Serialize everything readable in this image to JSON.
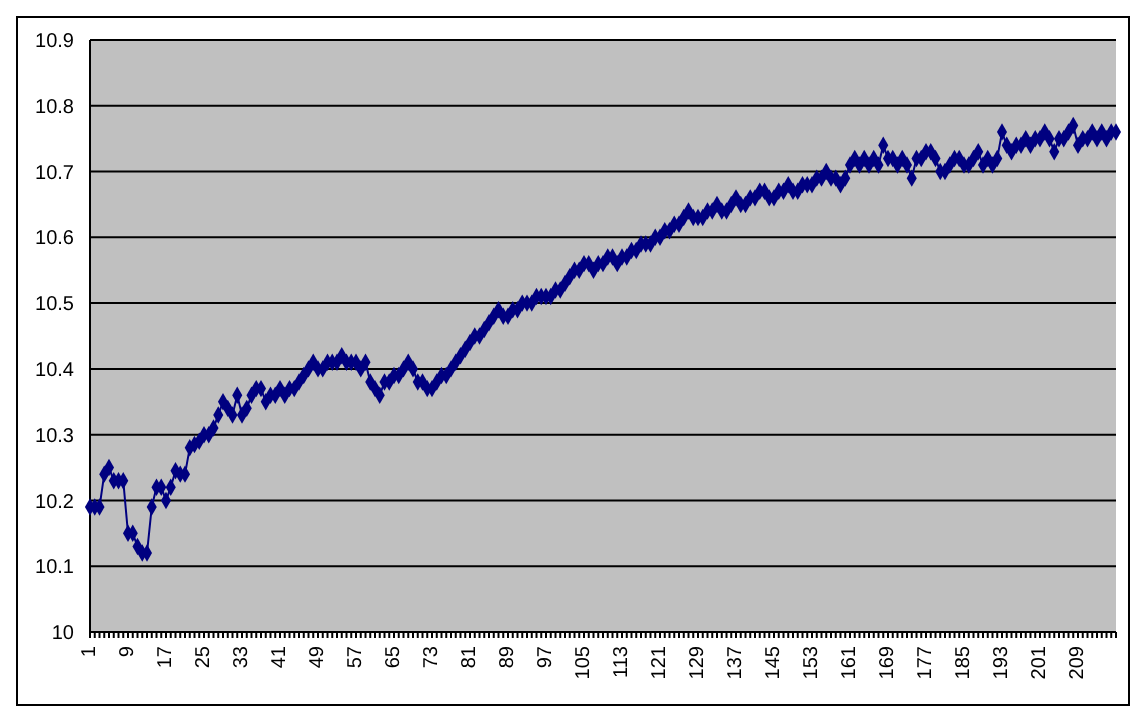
{
  "chart_data": {
    "type": "line",
    "categories": [
      "1",
      null,
      null,
      null,
      null,
      null,
      null,
      null,
      "9",
      null,
      null,
      null,
      null,
      null,
      null,
      null,
      "17",
      null,
      null,
      null,
      null,
      null,
      null,
      null,
      "25",
      null,
      null,
      null,
      null,
      null,
      null,
      null,
      "33",
      null,
      null,
      null,
      null,
      null,
      null,
      null,
      "41",
      null,
      null,
      null,
      null,
      null,
      null,
      null,
      "49",
      null,
      null,
      null,
      null,
      null,
      null,
      null,
      "57",
      null,
      null,
      null,
      null,
      null,
      null,
      null,
      "65",
      null,
      null,
      null,
      null,
      null,
      null,
      null,
      "73",
      null,
      null,
      null,
      null,
      null,
      null,
      null,
      "81",
      null,
      null,
      null,
      null,
      null,
      null,
      null,
      "89",
      null,
      null,
      null,
      null,
      null,
      null,
      null,
      "97",
      null,
      null,
      null,
      null,
      null,
      null,
      null,
      "105",
      null,
      null,
      null,
      null,
      null,
      null,
      null,
      "113",
      null,
      null,
      null,
      null,
      null,
      null,
      null,
      "121",
      null,
      null,
      null,
      null,
      null,
      null,
      null,
      "129",
      null,
      null,
      null,
      null,
      null,
      null,
      null,
      "137",
      null,
      null,
      null,
      null,
      null,
      null,
      null,
      "145",
      null,
      null,
      null,
      null,
      null,
      null,
      null,
      "153",
      null,
      null,
      null,
      null,
      null,
      null,
      null,
      "161",
      null,
      null,
      null,
      null,
      null,
      null,
      null,
      "169",
      null,
      null,
      null,
      null,
      null,
      null,
      null,
      "177",
      null,
      null,
      null,
      null,
      null,
      null,
      null,
      "185",
      null,
      null,
      null,
      null,
      null,
      null,
      null,
      "193",
      null,
      null,
      null,
      null,
      null,
      null,
      null,
      "201",
      null,
      null,
      null,
      null,
      null,
      null,
      null,
      "209",
      null,
      null,
      null,
      null,
      null,
      null,
      null,
      null
    ],
    "series": [
      {
        "color": "#000080",
        "values": [
          10.19,
          10.19,
          10.19,
          10.24,
          10.25,
          10.23,
          10.23,
          10.23,
          10.15,
          10.15,
          10.13,
          10.12,
          10.12,
          10.19,
          10.22,
          10.22,
          10.2,
          10.22,
          10.245,
          10.24,
          10.24,
          10.28,
          10.285,
          10.29,
          10.3,
          10.3,
          10.31,
          10.33,
          10.35,
          10.34,
          10.33,
          10.36,
          10.33,
          10.34,
          10.36,
          10.37,
          10.37,
          10.35,
          10.36,
          10.36,
          10.37,
          10.36,
          10.37,
          10.37,
          10.38,
          10.39,
          10.4,
          10.41,
          10.4,
          10.4,
          10.41,
          10.41,
          10.41,
          10.42,
          10.41,
          10.41,
          10.41,
          10.4,
          10.41,
          10.38,
          10.37,
          10.36,
          10.38,
          10.38,
          10.39,
          10.39,
          10.4,
          10.41,
          10.4,
          10.38,
          10.38,
          10.37,
          10.37,
          10.38,
          10.39,
          10.39,
          10.4,
          10.41,
          10.42,
          10.43,
          10.44,
          10.45,
          10.45,
          10.46,
          10.47,
          10.48,
          10.49,
          10.48,
          10.48,
          10.49,
          10.49,
          10.5,
          10.5,
          10.5,
          10.51,
          10.51,
          10.51,
          10.51,
          10.52,
          10.52,
          10.53,
          10.54,
          10.55,
          10.55,
          10.56,
          10.56,
          10.55,
          10.56,
          10.56,
          10.57,
          10.57,
          10.56,
          10.57,
          10.57,
          10.58,
          10.58,
          10.59,
          10.59,
          10.59,
          10.6,
          10.6,
          10.61,
          10.61,
          10.62,
          10.62,
          10.63,
          10.64,
          10.63,
          10.63,
          10.63,
          10.64,
          10.64,
          10.65,
          10.64,
          10.64,
          10.65,
          10.66,
          10.65,
          10.65,
          10.66,
          10.66,
          10.67,
          10.67,
          10.66,
          10.66,
          10.67,
          10.67,
          10.68,
          10.67,
          10.67,
          10.68,
          10.68,
          10.68,
          10.69,
          10.69,
          10.7,
          10.69,
          10.69,
          10.68,
          10.69,
          10.71,
          10.72,
          10.71,
          10.72,
          10.71,
          10.72,
          10.71,
          10.74,
          10.72,
          10.72,
          10.71,
          10.72,
          10.71,
          10.69,
          10.72,
          10.72,
          10.73,
          10.73,
          10.72,
          10.7,
          10.7,
          10.71,
          10.72,
          10.72,
          10.71,
          10.71,
          10.72,
          10.73,
          10.71,
          10.72,
          10.71,
          10.72,
          10.76,
          10.74,
          10.73,
          10.74,
          10.74,
          10.75,
          10.74,
          10.75,
          10.75,
          10.76,
          10.75,
          10.73,
          10.75,
          10.75,
          10.76,
          10.77,
          10.74,
          10.75,
          10.75,
          10.76,
          10.75,
          10.76,
          10.75,
          10.76,
          10.76
        ]
      }
    ],
    "ylim": [
      10,
      10.9
    ],
    "yticks": [
      10,
      10.1,
      10.2,
      10.3,
      10.4,
      10.5,
      10.6,
      10.7,
      10.8,
      10.9
    ],
    "grid": "y",
    "legend": false,
    "marker": "diamond",
    "line_style": "solid"
  }
}
